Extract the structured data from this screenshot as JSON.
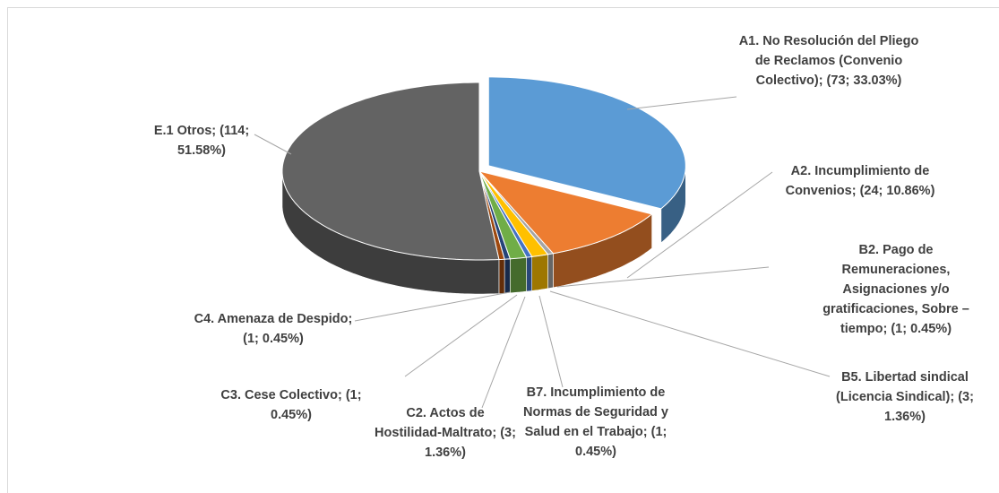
{
  "chart_data": {
    "type": "pie3d",
    "values": [
      73,
      24,
      1,
      3,
      1,
      3,
      1,
      1,
      114
    ],
    "value_labels": [
      "A1. No Resolución del Pliego de Reclamos (Convenio Colectivo); (73; 33.03%)",
      "A2. Incumplimiento de Convenios; (24; 10.86%)",
      "B2. Pago de Remuneraciones, Asignaciones y/o gratificaciones, Sobre – tiempo; (1; 0.45%)",
      "B5. Libertad sindical (Licencia Sindical); (3; 1.36%)",
      "B7. Incumplimiento de Normas de Seguridad y Salud en el Trabajo; (1; 0.45%)",
      "C2. Actos de Hostilidad-Maltrato; (3; 1.36%)",
      "C3. Cese Colectivo; (1; 0.45%)",
      "C4. Amenaza de Despido; (1; 0.45%)",
      "E.1 Otros; (114; 51.58%)"
    ],
    "colors": [
      "#5b9bd5",
      "#ed7d31",
      "#a5a5a5",
      "#ffc000",
      "#4472c4",
      "#70ad47",
      "#264478",
      "#9e480e",
      "#636363"
    ],
    "exploded": [
      0
    ]
  }
}
